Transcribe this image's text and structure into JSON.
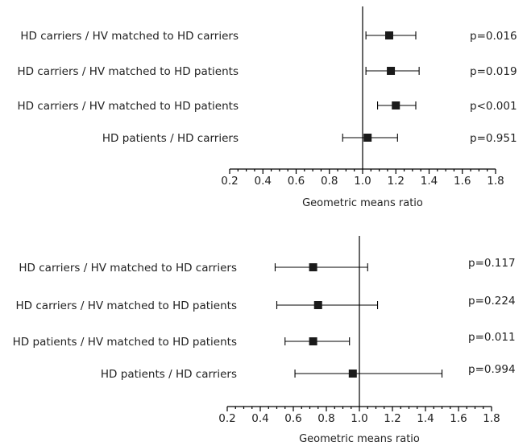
{
  "chart_data": [
    {
      "type": "forest",
      "xlabel": "Geometric means ratio",
      "xlim": [
        0.2,
        1.8
      ],
      "xticks": [
        "0.2",
        "0.4",
        "0.6",
        "0.8",
        "1.0",
        "1.2",
        "1.4",
        "1.6",
        "1.8"
      ],
      "reference_line": 1.0,
      "rows": [
        {
          "label": "HD carriers / HV matched to HD carriers",
          "estimate": 1.16,
          "ci_low": 1.02,
          "ci_high": 1.32,
          "p": "p=0.016"
        },
        {
          "label": "HD carriers / HV matched to HD patients",
          "estimate": 1.17,
          "ci_low": 1.02,
          "ci_high": 1.34,
          "p": "p=0.019"
        },
        {
          "label": "HD carriers / HV matched to HD patients",
          "estimate": 1.2,
          "ci_low": 1.09,
          "ci_high": 1.32,
          "p": "p<0.001"
        },
        {
          "label": "HD patients / HD carriers",
          "estimate": 1.03,
          "ci_low": 0.88,
          "ci_high": 1.21,
          "p": "p=0.951"
        }
      ]
    },
    {
      "type": "forest",
      "xlabel": "Geometric means ratio",
      "xlim": [
        0.2,
        1.8
      ],
      "xticks": [
        "0.2",
        "0.4",
        "0.6",
        "0.8",
        "1.0",
        "1.2",
        "1.4",
        "1.6",
        "1.8"
      ],
      "reference_line": 1.0,
      "rows": [
        {
          "label": "HD carriers / HV matched to HD carriers",
          "estimate": 0.72,
          "ci_low": 0.49,
          "ci_high": 1.05,
          "p": "p=0.117"
        },
        {
          "label": "HD carriers / HV matched to HD patients",
          "estimate": 0.75,
          "ci_low": 0.5,
          "ci_high": 1.11,
          "p": "p=0.224"
        },
        {
          "label": "HD patients / HV matched to HD patients",
          "estimate": 0.72,
          "ci_low": 0.55,
          "ci_high": 0.94,
          "p": "p=0.011"
        },
        {
          "label": "HD patients / HD carriers",
          "estimate": 0.96,
          "ci_low": 0.61,
          "ci_high": 1.5,
          "p": "p=0.994"
        }
      ]
    }
  ]
}
